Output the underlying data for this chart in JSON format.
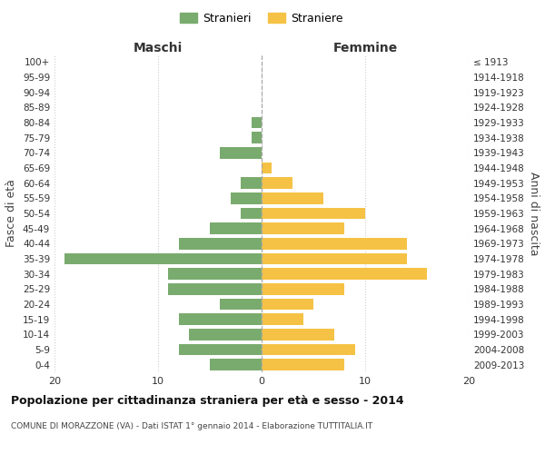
{
  "age_groups": [
    "100+",
    "95-99",
    "90-94",
    "85-89",
    "80-84",
    "75-79",
    "70-74",
    "65-69",
    "60-64",
    "55-59",
    "50-54",
    "45-49",
    "40-44",
    "35-39",
    "30-34",
    "25-29",
    "20-24",
    "15-19",
    "10-14",
    "5-9",
    "0-4"
  ],
  "birth_years": [
    "≤ 1913",
    "1914-1918",
    "1919-1923",
    "1924-1928",
    "1929-1933",
    "1934-1938",
    "1939-1943",
    "1944-1948",
    "1949-1953",
    "1954-1958",
    "1959-1963",
    "1964-1968",
    "1969-1973",
    "1974-1978",
    "1979-1983",
    "1984-1988",
    "1989-1993",
    "1994-1998",
    "1999-2003",
    "2004-2008",
    "2009-2013"
  ],
  "males": [
    0,
    0,
    0,
    0,
    1,
    1,
    4,
    0,
    2,
    3,
    2,
    5,
    8,
    19,
    9,
    9,
    4,
    8,
    7,
    8,
    5
  ],
  "females": [
    0,
    0,
    0,
    0,
    0,
    0,
    0,
    1,
    3,
    6,
    10,
    8,
    14,
    14,
    16,
    8,
    5,
    4,
    7,
    9,
    8
  ],
  "male_color": "#7aab6e",
  "female_color": "#f5c245",
  "grid_color": "#cccccc",
  "title": "Popolazione per cittadinanza straniera per età e sesso - 2014",
  "subtitle": "COMUNE DI MORAZZONE (VA) - Dati ISTAT 1° gennaio 2014 - Elaborazione TUTTITALIA.IT",
  "xlabel_left": "Maschi",
  "xlabel_right": "Femmine",
  "ylabel_left": "Fasce di età",
  "ylabel_right": "Anni di nascita",
  "legend_males": "Stranieri",
  "legend_females": "Straniere",
  "xlim": 20
}
